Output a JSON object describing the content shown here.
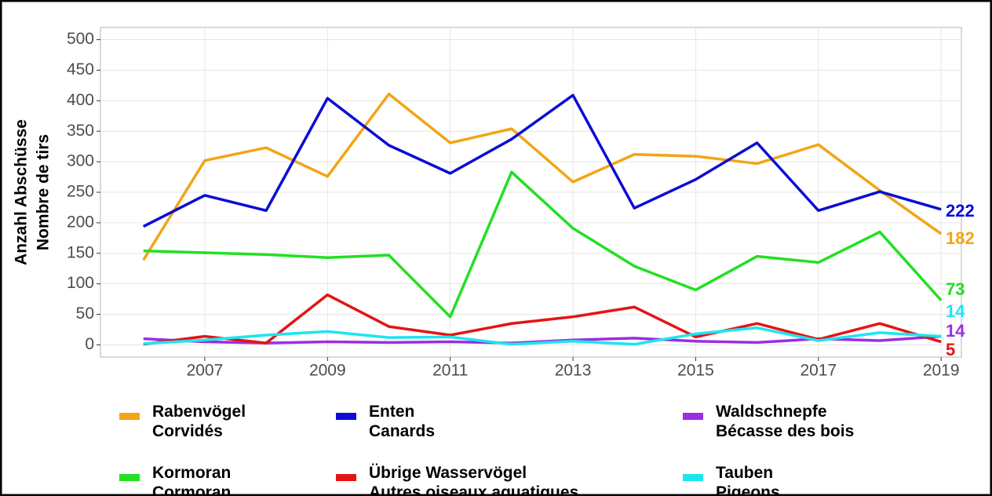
{
  "chart_data": {
    "type": "line",
    "y_label": [
      "Anzahl Abschüsse",
      "Nombre de tirs"
    ],
    "x": [
      2006,
      2007,
      2008,
      2009,
      2010,
      2011,
      2012,
      2013,
      2014,
      2015,
      2016,
      2017,
      2018,
      2019
    ],
    "xlim": [
      2005.3,
      2019.33
    ],
    "xticks": [
      2007,
      2009,
      2011,
      2013,
      2015,
      2017,
      2019
    ],
    "ylim": [
      -20,
      520
    ],
    "yticks": [
      0,
      50,
      100,
      150,
      200,
      250,
      300,
      350,
      400,
      450,
      500
    ],
    "grid": true,
    "legend": "bottom",
    "series": [
      {
        "name": "Rabenvögel\nCorvidés",
        "color": "#f2a515",
        "values": [
          139,
          302,
          323,
          276,
          411,
          331,
          354,
          267,
          312,
          309,
          297,
          328,
          253,
          182
        ]
      },
      {
        "name": "Enten\nCanards",
        "color": "#0c0cd6",
        "values": [
          194,
          245,
          220,
          404,
          327,
          281,
          337,
          409,
          224,
          271,
          331,
          220,
          251,
          222
        ]
      },
      {
        "name": "Waldschnepfe\nBécasse des bois",
        "color": "#9a2ee0",
        "values": [
          10,
          5,
          3,
          5,
          4,
          5,
          3,
          8,
          11,
          6,
          4,
          10,
          7,
          14
        ]
      },
      {
        "name": "Kormoran\nCormoran",
        "color": "#22e022",
        "values": [
          154,
          151,
          148,
          143,
          147,
          46,
          283,
          191,
          129,
          90,
          145,
          135,
          185,
          73
        ]
      },
      {
        "name": "Übrige Wasservögel\nAutres oiseaux aquatiques",
        "color": "#e41414",
        "values": [
          1,
          14,
          3,
          82,
          30,
          16,
          35,
          46,
          62,
          13,
          35,
          9,
          35,
          5
        ]
      },
      {
        "name": "Tauben\nPigeons",
        "color": "#1ee4f0",
        "values": [
          2,
          8,
          16,
          22,
          12,
          13,
          1,
          6,
          1,
          18,
          28,
          7,
          20,
          14
        ]
      }
    ]
  }
}
